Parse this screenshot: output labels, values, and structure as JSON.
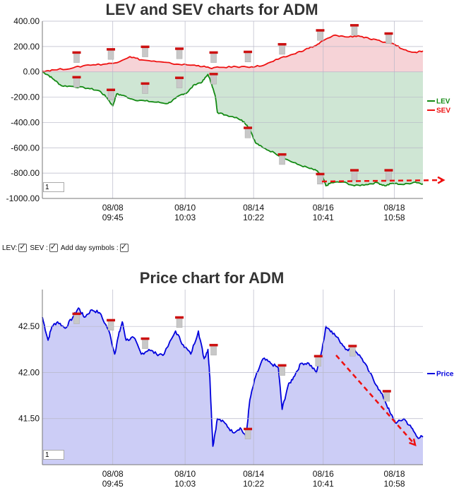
{
  "chart_data": [
    {
      "type": "area",
      "title": "LEV and SEV charts for ADM",
      "x_tick_labels": [
        {
          "date": "08/08",
          "time": "09:45"
        },
        {
          "date": "08/10",
          "time": "10:03"
        },
        {
          "date": "08/14",
          "time": "10:22"
        },
        {
          "date": "08/16",
          "time": "10:41"
        },
        {
          "date": "08/18",
          "time": "10:58"
        }
      ],
      "x_range": [
        0,
        100
      ],
      "x_ticks": [
        18.5,
        37.5,
        55.5,
        73.8,
        92.5
      ],
      "y_tick_labels": [
        "400.00",
        "200.00",
        "0.00",
        "-200.00",
        "-400.00",
        "-600.00",
        "-800.00",
        "-1000.00"
      ],
      "ylim": [
        -1000,
        400
      ],
      "grid": true,
      "legend_position": "right",
      "series": [
        {
          "name": "LEV",
          "color": "#138a13",
          "fill": "#cfe6d4",
          "points": [
            [
              0,
              0
            ],
            [
              1.5,
              -25
            ],
            [
              3,
              -60
            ],
            [
              5,
              -110
            ],
            [
              8,
              -115
            ],
            [
              12,
              -130
            ],
            [
              15,
              -150
            ],
            [
              17,
              -205
            ],
            [
              18.5,
              -270
            ],
            [
              19.5,
              -175
            ],
            [
              21,
              -185
            ],
            [
              24,
              -220
            ],
            [
              27,
              -230
            ],
            [
              30,
              -240
            ],
            [
              33,
              -250
            ],
            [
              35,
              -210
            ],
            [
              36.5,
              -180
            ],
            [
              38,
              -165
            ],
            [
              40,
              -100
            ],
            [
              42,
              -80
            ],
            [
              43.5,
              -20
            ],
            [
              44.5,
              -100
            ],
            [
              45.5,
              -200
            ],
            [
              46,
              -320
            ],
            [
              48,
              -340
            ],
            [
              51,
              -360
            ],
            [
              53,
              -395
            ],
            [
              54.5,
              -450
            ],
            [
              56,
              -560
            ],
            [
              58,
              -600
            ],
            [
              61,
              -640
            ],
            [
              64,
              -690
            ],
            [
              67,
              -730
            ],
            [
              70,
              -760
            ],
            [
              72,
              -780
            ],
            [
              73.5,
              -820
            ],
            [
              74.5,
              -900
            ],
            [
              76,
              -875
            ],
            [
              79,
              -870
            ],
            [
              82,
              -900
            ],
            [
              85,
              -890
            ],
            [
              88,
              -875
            ],
            [
              90,
              -900
            ],
            [
              92,
              -880
            ],
            [
              95,
              -890
            ],
            [
              98,
              -870
            ],
            [
              100,
              -885
            ]
          ]
        },
        {
          "name": "SEV",
          "color": "#ee1111",
          "fill": "#f6d3d7",
          "points": [
            [
              0,
              5
            ],
            [
              3,
              15
            ],
            [
              8,
              30
            ],
            [
              12,
              55
            ],
            [
              16,
              60
            ],
            [
              19,
              70
            ],
            [
              23,
              120
            ],
            [
              26,
              95
            ],
            [
              30,
              80
            ],
            [
              34,
              65
            ],
            [
              38,
              55
            ],
            [
              41,
              50
            ],
            [
              44,
              30
            ],
            [
              47,
              35
            ],
            [
              51,
              40
            ],
            [
              55,
              40
            ],
            [
              58,
              50
            ],
            [
              62,
              100
            ],
            [
              66,
              140
            ],
            [
              69,
              175
            ],
            [
              72,
              210
            ],
            [
              74,
              250
            ],
            [
              77,
              290
            ],
            [
              80,
              275
            ],
            [
              83,
              285
            ],
            [
              86,
              260
            ],
            [
              89,
              240
            ],
            [
              92,
              225
            ],
            [
              95,
              175
            ],
            [
              98,
              155
            ],
            [
              100,
              165
            ]
          ]
        }
      ],
      "day_markers": [
        {
          "x": 9,
          "y": 140
        },
        {
          "x": 9,
          "y": -55
        },
        {
          "x": 18,
          "y": 165
        },
        {
          "x": 18,
          "y": -155
        },
        {
          "x": 27,
          "y": 185
        },
        {
          "x": 27,
          "y": -105
        },
        {
          "x": 36,
          "y": 170
        },
        {
          "x": 36,
          "y": -60
        },
        {
          "x": 45,
          "y": 140
        },
        {
          "x": 45,
          "y": -30
        },
        {
          "x": 54,
          "y": 145
        },
        {
          "x": 54,
          "y": -455
        },
        {
          "x": 63,
          "y": 205
        },
        {
          "x": 63,
          "y": -665
        },
        {
          "x": 73,
          "y": 315
        },
        {
          "x": 73,
          "y": -820
        },
        {
          "x": 82,
          "y": 355
        },
        {
          "x": 82,
          "y": -790
        },
        {
          "x": 91,
          "y": 290
        },
        {
          "x": 91,
          "y": -790
        }
      ]
    },
    {
      "type": "area",
      "title": "Price chart for ADM",
      "x_tick_labels": [
        {
          "date": "08/08",
          "time": "09:45"
        },
        {
          "date": "08/10",
          "time": "10:03"
        },
        {
          "date": "08/14",
          "time": "10:22"
        },
        {
          "date": "08/16",
          "time": "10:41"
        },
        {
          "date": "08/18",
          "time": "10:58"
        }
      ],
      "x_range": [
        0,
        100
      ],
      "x_ticks": [
        18.5,
        37.5,
        55.5,
        73.8,
        92.5
      ],
      "y_tick_labels": [
        "42.50",
        "42.00",
        "41.50"
      ],
      "ylim": [
        41.0,
        42.9
      ],
      "grid": true,
      "legend_position": "right",
      "series": [
        {
          "name": "Price",
          "color": "#0000dd",
          "fill": "#cccdf6",
          "points": [
            [
              0,
              42.6
            ],
            [
              1.5,
              42.35
            ],
            [
              2.5,
              42.5
            ],
            [
              4,
              42.55
            ],
            [
              6,
              42.48
            ],
            [
              8,
              42.6
            ],
            [
              9.5,
              42.7
            ],
            [
              11,
              42.6
            ],
            [
              13,
              42.68
            ],
            [
              15,
              42.65
            ],
            [
              17.5,
              42.45
            ],
            [
              19,
              42.2
            ],
            [
              20,
              42.4
            ],
            [
              21,
              42.55
            ],
            [
              22,
              42.35
            ],
            [
              24,
              42.38
            ],
            [
              26,
              42.2
            ],
            [
              28,
              42.25
            ],
            [
              30,
              42.2
            ],
            [
              32,
              42.2
            ],
            [
              35,
              42.45
            ],
            [
              37,
              42.3
            ],
            [
              39,
              42.2
            ],
            [
              41,
              42.45
            ],
            [
              42.5,
              42.15
            ],
            [
              43.5,
              42.25
            ],
            [
              44,
              41.95
            ],
            [
              44.8,
              41.2
            ],
            [
              46,
              41.5
            ],
            [
              48,
              41.45
            ],
            [
              50,
              41.35
            ],
            [
              52,
              41.4
            ],
            [
              53.5,
              41.3
            ],
            [
              54.5,
              41.7
            ],
            [
              56,
              41.95
            ],
            [
              58,
              42.15
            ],
            [
              60,
              42.1
            ],
            [
              62,
              42.05
            ],
            [
              63,
              41.6
            ],
            [
              64.5,
              41.85
            ],
            [
              66,
              41.95
            ],
            [
              68,
              42.1
            ],
            [
              70,
              42.1
            ],
            [
              72,
              42.0
            ],
            [
              73.5,
              42.25
            ],
            [
              74.5,
              42.5
            ],
            [
              76,
              42.45
            ],
            [
              78,
              42.35
            ],
            [
              80,
              42.25
            ],
            [
              82,
              42.25
            ],
            [
              84,
              42.15
            ],
            [
              86,
              42.0
            ],
            [
              88,
              41.85
            ],
            [
              90,
              41.7
            ],
            [
              91.5,
              41.55
            ],
            [
              93,
              41.45
            ],
            [
              95,
              41.5
            ],
            [
              97,
              41.4
            ],
            [
              98.5,
              41.3
            ],
            [
              100,
              41.3
            ]
          ]
        }
      ],
      "day_markers": [
        {
          "x": 9,
          "y": 42.62
        },
        {
          "x": 18,
          "y": 42.55
        },
        {
          "x": 27,
          "y": 42.35
        },
        {
          "x": 36,
          "y": 42.58
        },
        {
          "x": 45,
          "y": 42.28
        },
        {
          "x": 54,
          "y": 41.37
        },
        {
          "x": 63,
          "y": 42.06
        },
        {
          "x": 72.5,
          "y": 42.16
        },
        {
          "x": 81.5,
          "y": 42.27
        },
        {
          "x": 90.5,
          "y": 41.78
        }
      ]
    }
  ],
  "controls": {
    "lev_label": "LEV:",
    "sev_label": "SEV :",
    "day_symbols_label": "Add day symbols :"
  },
  "zoom_inputs": {
    "top": "1",
    "bottom": "1"
  }
}
